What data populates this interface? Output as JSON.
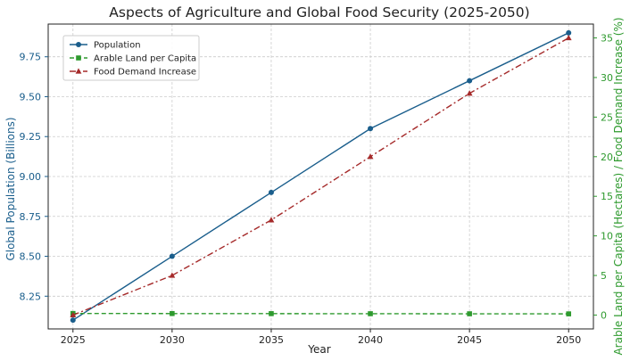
{
  "chart_data": {
    "type": "line",
    "title": "Aspects of Agriculture and Global Food Security (2025-2050)",
    "xlabel": "Year",
    "ylabel_left": "Global Population (Billions)",
    "ylabel_right": "Arable Land per Capita (Hectares) / Food Demand Increase (%)",
    "x": [
      2025,
      2030,
      2035,
      2040,
      2045,
      2050
    ],
    "x_ticks": [
      "2025",
      "2030",
      "2035",
      "2040",
      "2045",
      "2050"
    ],
    "y_left_ticks": [
      "8.25",
      "8.50",
      "8.75",
      "9.00",
      "9.25",
      "9.50",
      "9.75"
    ],
    "y_right_ticks": [
      "0",
      "5",
      "10",
      "15",
      "20",
      "25",
      "30",
      "35"
    ],
    "xlim": [
      2023.75,
      2051.25
    ],
    "ylim_left": [
      8.045,
      9.955
    ],
    "ylim_right": [
      -1.75,
      36.75
    ],
    "grid": true,
    "legend_position": "upper-left",
    "series": [
      {
        "name": "Population",
        "axis": "left",
        "color": "#1a5e8c",
        "style": "solid",
        "marker": "circle",
        "values": [
          8.1,
          8.5,
          8.9,
          9.3,
          9.6,
          9.9
        ]
      },
      {
        "name": "Arable Land per Capita",
        "axis": "right",
        "color": "#2e9a2e",
        "style": "dashed",
        "marker": "square",
        "values": [
          0.2,
          0.19,
          0.18,
          0.17,
          0.16,
          0.15
        ]
      },
      {
        "name": "Food Demand Increase",
        "axis": "right",
        "color": "#a52a2a",
        "style": "dashdot",
        "marker": "triangle",
        "values": [
          0,
          5,
          12,
          20,
          28,
          35
        ]
      }
    ],
    "colors": {
      "left_axis": "#1a5e8c",
      "right_axis": "#2e9a2e",
      "frame": "#222222"
    }
  }
}
